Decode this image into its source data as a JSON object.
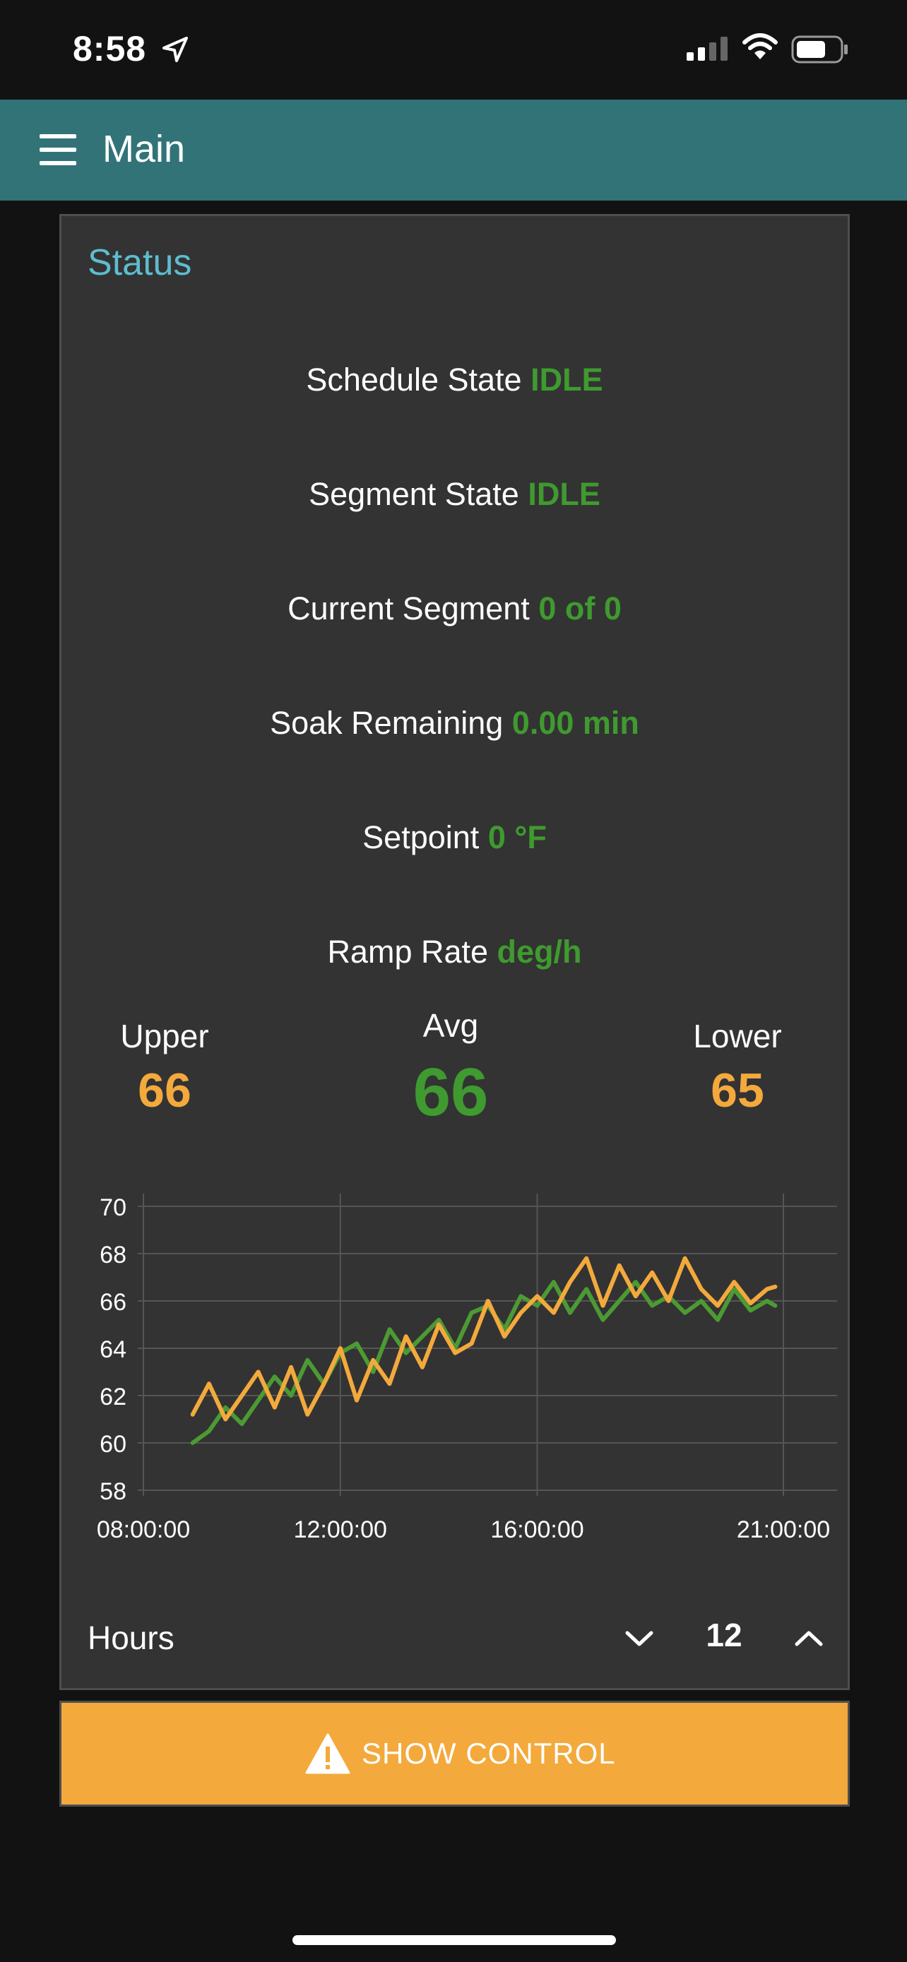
{
  "statusbar": {
    "time": "8:58"
  },
  "appbar": {
    "title": "Main"
  },
  "status_card": {
    "title": "Status",
    "rows": [
      {
        "label": "Schedule State",
        "value": "IDLE"
      },
      {
        "label": "Segment State",
        "value": "IDLE"
      },
      {
        "label": "Current Segment",
        "value": "0 of 0"
      },
      {
        "label": "Soak Remaining",
        "value": "0.00 min"
      },
      {
        "label": "Setpoint",
        "value": "0 °F"
      },
      {
        "label": "Ramp Rate",
        "value": "deg/h"
      }
    ]
  },
  "gauges": {
    "upper": {
      "label": "Upper",
      "value": "66"
    },
    "avg": {
      "label": "Avg",
      "value": "66"
    },
    "lower": {
      "label": "Lower",
      "value": "65"
    }
  },
  "colors": {
    "accent_teal": "#327378",
    "title_cyan": "#5dbdcf",
    "value_green": "#3f9a2f",
    "series_orange": "#f3a93c",
    "series_green": "#4c9a33",
    "button_orange": "#f3a93c"
  },
  "chart_data": {
    "type": "line",
    "title": "",
    "xlabel": "",
    "ylabel": "",
    "ylim": [
      58,
      70
    ],
    "yticks": [
      "70",
      "68",
      "66",
      "64",
      "62",
      "60",
      "58"
    ],
    "xticks": [
      "08:00:00",
      "12:00:00",
      "16:00:00",
      "21:00:00"
    ],
    "grid": true,
    "legend": "none",
    "series": [
      {
        "color": "#4c9a33",
        "x": [
          "09:00",
          "09:20",
          "09:40",
          "10:00",
          "10:20",
          "10:40",
          "11:00",
          "11:20",
          "11:40",
          "12:00",
          "12:20",
          "12:40",
          "13:00",
          "13:20",
          "13:40",
          "14:00",
          "14:20",
          "14:40",
          "15:00",
          "15:20",
          "15:40",
          "16:00",
          "16:20",
          "16:40",
          "17:00",
          "17:20",
          "17:40",
          "18:00",
          "18:20",
          "18:40",
          "19:00",
          "19:20",
          "19:40",
          "20:00",
          "20:20",
          "20:40",
          "20:50"
        ],
        "values": [
          60.0,
          60.5,
          61.5,
          60.8,
          61.8,
          62.8,
          62.0,
          63.5,
          62.5,
          63.8,
          64.2,
          63.0,
          64.8,
          63.8,
          64.5,
          65.2,
          64.0,
          65.5,
          65.8,
          64.8,
          66.2,
          65.8,
          66.8,
          65.5,
          66.5,
          65.2,
          66.0,
          66.8,
          65.8,
          66.2,
          65.5,
          66.0,
          65.2,
          66.5,
          65.6,
          66.0,
          65.8
        ]
      },
      {
        "color": "#f3a93c",
        "x": [
          "09:00",
          "09:20",
          "09:40",
          "10:00",
          "10:20",
          "10:40",
          "11:00",
          "11:20",
          "11:40",
          "12:00",
          "12:20",
          "12:40",
          "13:00",
          "13:20",
          "13:40",
          "14:00",
          "14:20",
          "14:40",
          "15:00",
          "15:20",
          "15:40",
          "16:00",
          "16:20",
          "16:40",
          "17:00",
          "17:20",
          "17:40",
          "18:00",
          "18:20",
          "18:40",
          "19:00",
          "19:20",
          "19:40",
          "20:00",
          "20:20",
          "20:40",
          "20:50"
        ],
        "values": [
          61.2,
          62.5,
          61.0,
          62.0,
          63.0,
          61.5,
          63.2,
          61.2,
          62.5,
          64.0,
          61.8,
          63.5,
          62.5,
          64.5,
          63.2,
          65.0,
          63.8,
          64.2,
          66.0,
          64.5,
          65.5,
          66.2,
          65.5,
          66.8,
          67.8,
          65.8,
          67.5,
          66.2,
          67.2,
          66.0,
          67.8,
          66.5,
          65.8,
          66.8,
          65.9,
          66.5,
          66.6
        ]
      }
    ]
  },
  "hours_control": {
    "label": "Hours",
    "value": "12"
  },
  "control_button": {
    "label": "SHOW CONTROL"
  }
}
